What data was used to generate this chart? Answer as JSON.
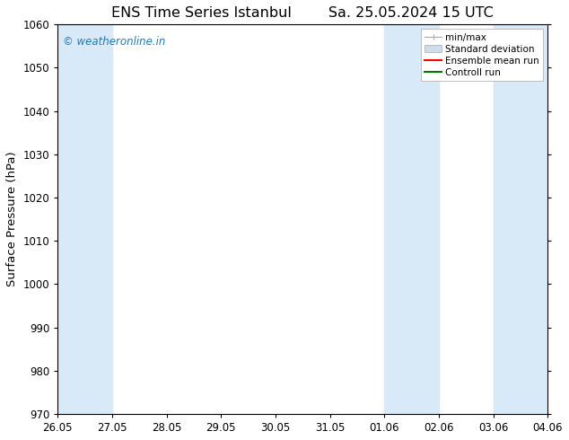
{
  "title_left": "ENS Time Series Istanbul",
  "title_right": "Sa. 25.05.2024 15 UTC",
  "ylabel": "Surface Pressure (hPa)",
  "ylim": [
    970,
    1060
  ],
  "yticks": [
    970,
    980,
    990,
    1000,
    1010,
    1020,
    1030,
    1040,
    1050,
    1060
  ],
  "xtick_labels": [
    "26.05",
    "27.05",
    "28.05",
    "29.05",
    "30.05",
    "31.05",
    "01.06",
    "02.06",
    "03.06",
    "04.06"
  ],
  "n_xticks": 10,
  "watermark": "© weatheronline.in",
  "watermark_color": "#1a7acc",
  "shaded_bands": [
    {
      "xmin": 0.0,
      "xmax": 1.0,
      "color": "#d8eaf8"
    },
    {
      "xmin": 6.0,
      "xmax": 7.0,
      "color": "#d8eaf8"
    },
    {
      "xmin": 8.0,
      "xmax": 9.0,
      "color": "#d8eaf8"
    }
  ],
  "legend_items": [
    {
      "label": "min/max",
      "color": "#aaaaaa",
      "lw": 1.0,
      "style": "minmax"
    },
    {
      "label": "Standard deviation",
      "color": "#ccdded",
      "lw": 8,
      "style": "band"
    },
    {
      "label": "Ensemble mean run",
      "color": "#ff0000",
      "lw": 1.5,
      "style": "line"
    },
    {
      "label": "Controll run",
      "color": "#007700",
      "lw": 1.5,
      "style": "line"
    }
  ],
  "background_color": "#ffffff",
  "plot_bg_color": "#ffffff",
  "tick_fontsize": 8.5,
  "label_fontsize": 9.5,
  "title_fontsize": 11.5
}
